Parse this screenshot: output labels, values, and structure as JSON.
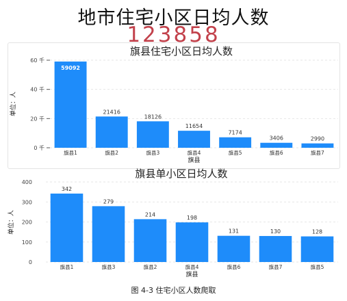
{
  "header": {
    "title": "地市住宅小区日均人数",
    "total": "123858"
  },
  "caption": "图 4-3 住宅小区人数爬取",
  "colors": {
    "bar": "#1e8cfa",
    "total": "#c2414b",
    "grid": "#e6e6e6"
  },
  "chart_data": [
    {
      "type": "bar",
      "title": "旗县住宅小区日均人数",
      "xlabel": "旗县",
      "ylabel": "单位：人",
      "categories": [
        "旗县1",
        "旗县2",
        "旗县3",
        "旗县4",
        "旗县5",
        "旗县6",
        "旗县7"
      ],
      "values": [
        59092,
        21416,
        18126,
        11654,
        7174,
        3406,
        2990
      ],
      "ylim": [
        0,
        60000
      ],
      "yticks": [
        0,
        20000,
        40000,
        60000
      ],
      "ytick_labels": [
        "0 千",
        "20 千",
        "40 千",
        "60 千"
      ],
      "grid": true
    },
    {
      "type": "bar",
      "title": "旗县单小区日均人数",
      "xlabel": "旗县",
      "ylabel": "单位：人",
      "categories": [
        "旗县1",
        "旗县3",
        "旗县2",
        "旗县4",
        "旗县6",
        "旗县7",
        "旗县5"
      ],
      "values": [
        342,
        279,
        214,
        198,
        131,
        130,
        128
      ],
      "ylim": [
        0,
        400
      ],
      "yticks": [
        0,
        100,
        200,
        300,
        400
      ],
      "ytick_labels": [
        "0",
        "100",
        "200",
        "300",
        "400"
      ],
      "grid": true
    }
  ]
}
